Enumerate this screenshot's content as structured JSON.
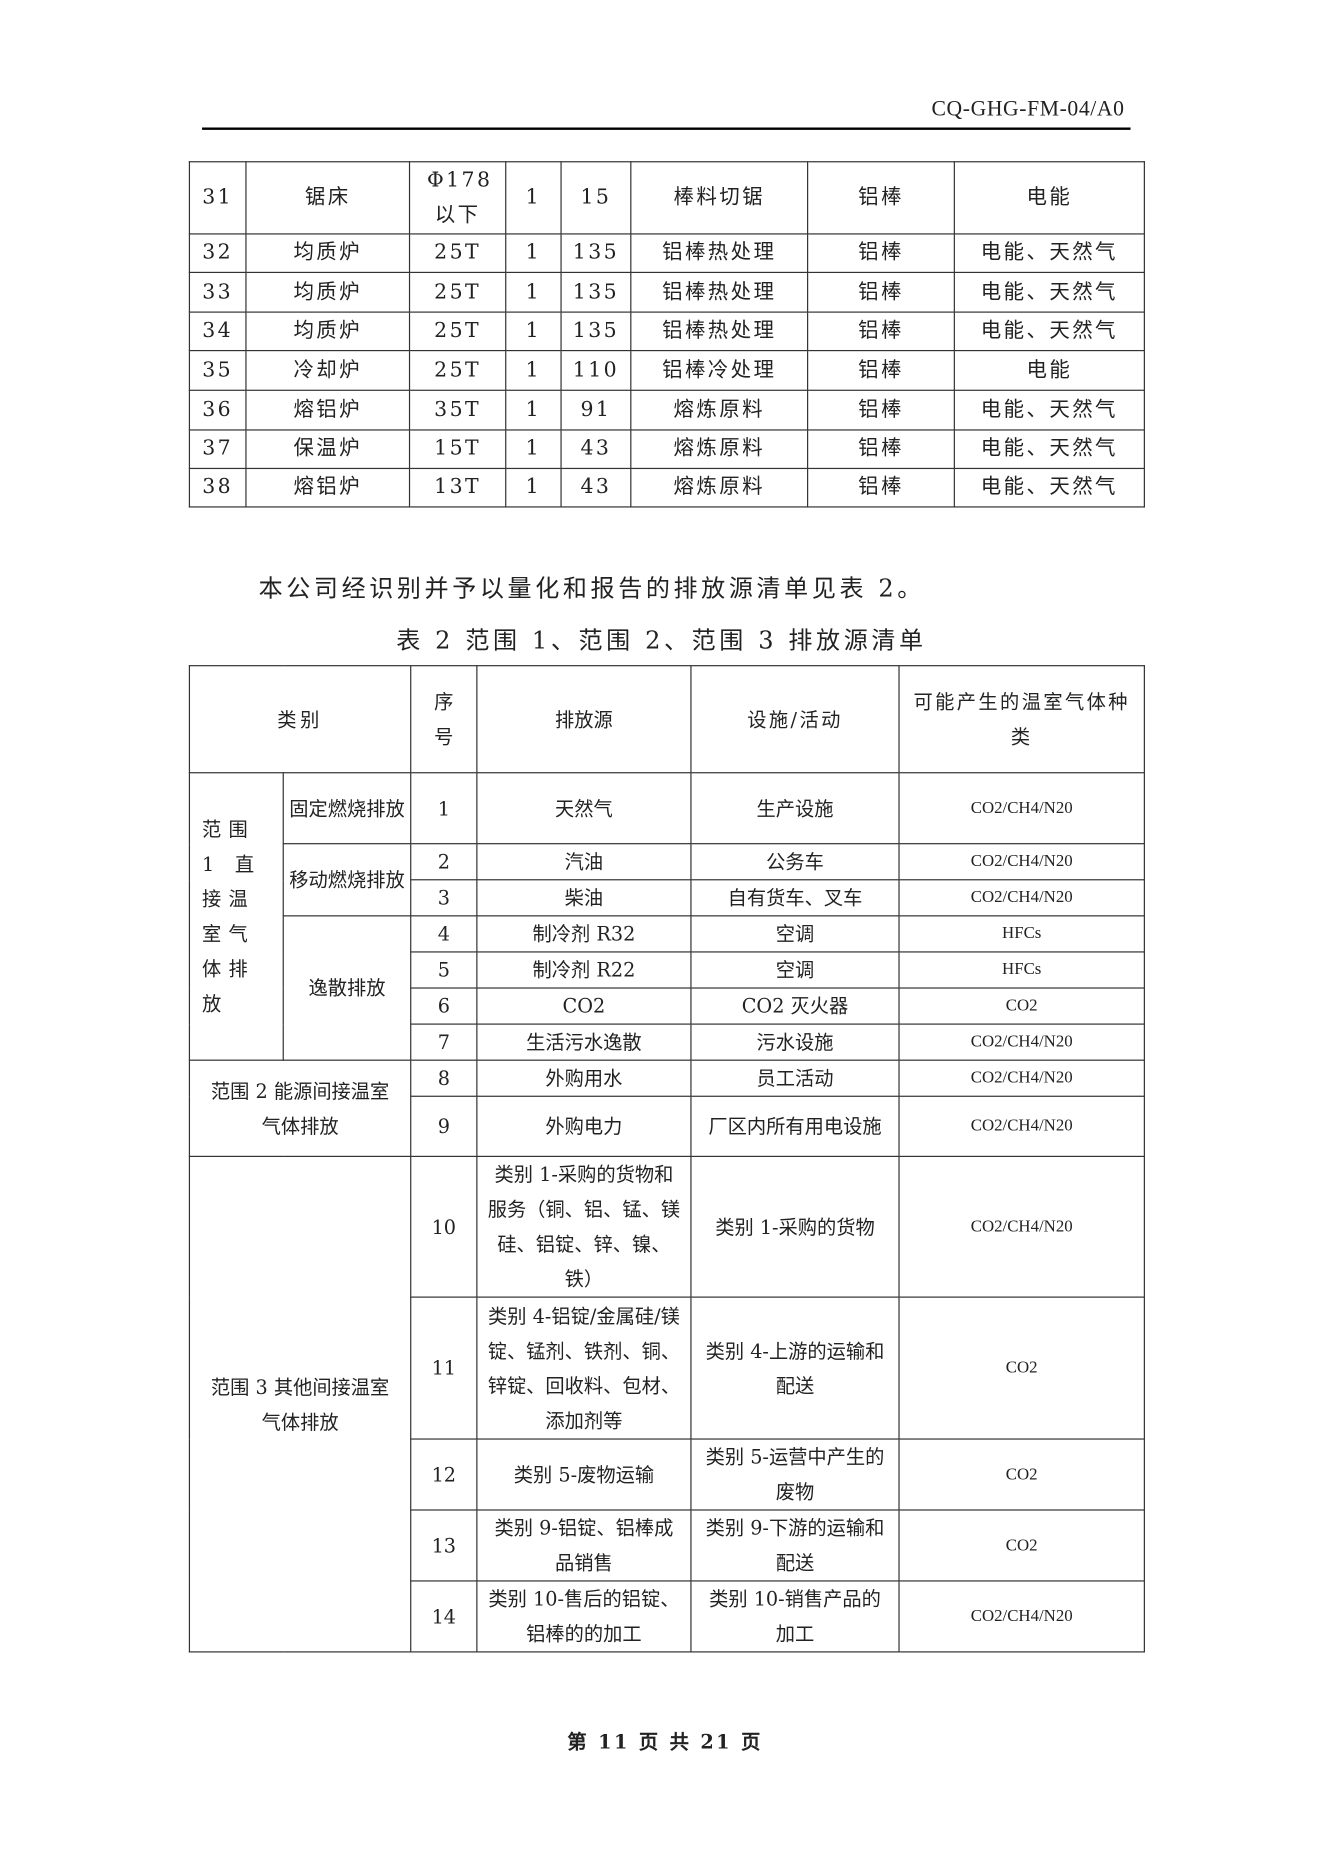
{
  "header": {
    "doc_code": "CQ-GHG-FM-04/A0"
  },
  "table1": {
    "rows": [
      [
        "31",
        "锯床",
        "Φ178 以下",
        "1",
        "15",
        "棒料切锯",
        "铝棒",
        "电能"
      ],
      [
        "32",
        "均质炉",
        "25T",
        "1",
        "135",
        "铝棒热处理",
        "铝棒",
        "电能、天然气"
      ],
      [
        "33",
        "均质炉",
        "25T",
        "1",
        "135",
        "铝棒热处理",
        "铝棒",
        "电能、天然气"
      ],
      [
        "34",
        "均质炉",
        "25T",
        "1",
        "135",
        "铝棒热处理",
        "铝棒",
        "电能、天然气"
      ],
      [
        "35",
        "冷却炉",
        "25T",
        "1",
        "110",
        "铝棒冷处理",
        "铝棒",
        "电能"
      ],
      [
        "36",
        "熔铝炉",
        "35T",
        "1",
        "91",
        "熔炼原料",
        "铝棒",
        "电能、天然气"
      ],
      [
        "37",
        "保温炉",
        "15T",
        "1",
        "43",
        "熔炼原料",
        "铝棒",
        "电能、天然气"
      ],
      [
        "38",
        "熔铝炉",
        "13T",
        "1",
        "43",
        "熔炼原料",
        "铝棒",
        "电能、天然气"
      ]
    ]
  },
  "paragraph": "本公司经识别并予以量化和报告的排放源清单见表 2。",
  "caption": "表 2 范围 1、范围 2、范围 3 排放源清单",
  "table2": {
    "headers": {
      "category": "类别",
      "no": "序号",
      "source": "排放源",
      "facility": "设施/活动",
      "gas": "可能产生的温室气体种类"
    },
    "groups": {
      "scope1": "范围 1 直接温室气体排放",
      "stationary": "固定燃烧排放",
      "mobile": "移动燃烧排放",
      "fugitive": "逸散排放",
      "scope2": "范围 2 能源间接温室气体排放",
      "scope3": "范围 3 其他间接温室气体排放"
    },
    "rows": [
      {
        "no": "1",
        "source": "天然气",
        "facility": "生产设施",
        "gas": "CO2/CH4/N20"
      },
      {
        "no": "2",
        "source": "汽油",
        "facility": "公务车",
        "gas": "CO2/CH4/N20"
      },
      {
        "no": "3",
        "source": "柴油",
        "facility": "自有货车、叉车",
        "gas": "CO2/CH4/N20"
      },
      {
        "no": "4",
        "source": "制冷剂 R32",
        "facility": "空调",
        "gas": "HFCs"
      },
      {
        "no": "5",
        "source": "制冷剂 R22",
        "facility": "空调",
        "gas": "HFCs"
      },
      {
        "no": "6",
        "source": "CO2",
        "facility": "CO2 灭火器",
        "gas": "CO2"
      },
      {
        "no": "7",
        "source": "生活污水逸散",
        "facility": "污水设施",
        "gas": "CO2/CH4/N20"
      },
      {
        "no": "8",
        "source": "外购用水",
        "facility": "员工活动",
        "gas": "CO2/CH4/N20"
      },
      {
        "no": "9",
        "source": "外购电力",
        "facility": "厂区内所有用电设施",
        "gas": "CO2/CH4/N20"
      },
      {
        "no": "10",
        "source": "类别 1-采购的货物和服务（铜、铝、锰、镁硅、铝锭、锌、镍、铁）",
        "facility": "类别 1-采购的货物",
        "gas": "CO2/CH4/N20"
      },
      {
        "no": "11",
        "source": "类别 4-铝锭/金属硅/镁锭、锰剂、铁剂、铜、锌锭、回收料、包材、添加剂等",
        "facility": "类别 4-上游的运输和配送",
        "gas": "CO2"
      },
      {
        "no": "12",
        "source": "类别 5-废物运输",
        "facility": "类别 5-运营中产生的废物",
        "gas": "CO2"
      },
      {
        "no": "13",
        "source": "类别 9-铝锭、铝棒成品销售",
        "facility": "类别 9-下游的运输和配送",
        "gas": "CO2"
      },
      {
        "no": "14",
        "source": "类别 10-售后的铝锭、铝棒的的加工",
        "facility": "类别 10-销售产品的加工",
        "gas": "CO2/CH4/N20"
      }
    ]
  },
  "footer": "第 11 页 共 21 页"
}
